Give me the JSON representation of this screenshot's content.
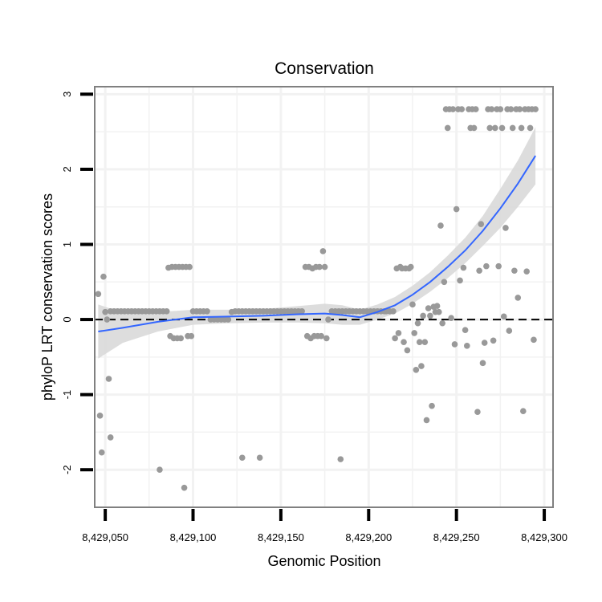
{
  "chart_data": {
    "type": "scatter",
    "title": "Conservation",
    "xlabel": "Genomic Position",
    "ylabel": "phyloP LRT conservation scores",
    "xlim": [
      8429044,
      8429305
    ],
    "ylim": [
      -2.5,
      3.1
    ],
    "x_ticks": [
      8429050,
      8429100,
      8429150,
      8429200,
      8429250,
      8429300
    ],
    "x_tick_labels": [
      "8,429,050",
      "8,429,100",
      "8,429,150",
      "8,429,200",
      "8,429,250",
      "8,429,300"
    ],
    "y_ticks": [
      -2,
      -1,
      0,
      1,
      2,
      3
    ],
    "y_tick_labels": [
      "-2",
      "-1",
      "0",
      "1",
      "2",
      "3"
    ],
    "grid": true,
    "reference_line": {
      "y": 0,
      "style": "dashed"
    },
    "colors": {
      "points": "#999999",
      "smooth_line": "#3366ff",
      "confidence_band": "#d9d9d9",
      "panel_border": "#808080",
      "grid": "#f2f2f2",
      "reference_line": "#000000"
    },
    "series": [
      {
        "name": "scores",
        "points": [
          [
            8429046,
            0.34
          ],
          [
            8429047,
            -1.28
          ],
          [
            8429048,
            -1.77
          ],
          [
            8429049,
            0.57
          ],
          [
            8429050,
            0.1
          ],
          [
            8429051,
            0.0
          ],
          [
            8429052,
            -0.79
          ],
          [
            8429053,
            -1.57
          ],
          [
            8429053,
            0.11
          ],
          [
            8429055,
            0.11
          ],
          [
            8429057,
            0.11
          ],
          [
            8429059,
            0.11
          ],
          [
            8429061,
            0.11
          ],
          [
            8429063,
            0.11
          ],
          [
            8429065,
            0.11
          ],
          [
            8429067,
            0.11
          ],
          [
            8429069,
            0.11
          ],
          [
            8429071,
            0.11
          ],
          [
            8429073,
            0.11
          ],
          [
            8429075,
            0.11
          ],
          [
            8429077,
            0.11
          ],
          [
            8429079,
            0.11
          ],
          [
            8429081,
            -2.0
          ],
          [
            8429081,
            0.11
          ],
          [
            8429083,
            0.11
          ],
          [
            8429085,
            0.11
          ],
          [
            8429086,
            0.69
          ],
          [
            8429087,
            -0.22
          ],
          [
            8429088,
            0.7
          ],
          [
            8429089,
            -0.25
          ],
          [
            8429090,
            0.7
          ],
          [
            8429091,
            -0.25
          ],
          [
            8429092,
            0.7
          ],
          [
            8429093,
            -0.25
          ],
          [
            8429094,
            0.7
          ],
          [
            8429095,
            -2.24
          ],
          [
            8429096,
            0.7
          ],
          [
            8429097,
            -0.22
          ],
          [
            8429098,
            0.7
          ],
          [
            8429099,
            -0.22
          ],
          [
            8429100,
            0.11
          ],
          [
            8429102,
            0.11
          ],
          [
            8429104,
            0.11
          ],
          [
            8429106,
            0.11
          ],
          [
            8429108,
            0.11
          ],
          [
            8429110,
            0.0
          ],
          [
            8429112,
            0.0
          ],
          [
            8429114,
            0.0
          ],
          [
            8429116,
            0.0
          ],
          [
            8429118,
            0.0
          ],
          [
            8429120,
            0.0
          ],
          [
            8429122,
            0.1
          ],
          [
            8429124,
            0.11
          ],
          [
            8429126,
            0.11
          ],
          [
            8429128,
            0.11
          ],
          [
            8429128,
            -1.84
          ],
          [
            8429130,
            0.11
          ],
          [
            8429132,
            0.11
          ],
          [
            8429134,
            0.11
          ],
          [
            8429136,
            0.11
          ],
          [
            8429138,
            0.11
          ],
          [
            8429138,
            -1.84
          ],
          [
            8429140,
            0.11
          ],
          [
            8429142,
            0.11
          ],
          [
            8429144,
            0.11
          ],
          [
            8429146,
            0.11
          ],
          [
            8429148,
            0.11
          ],
          [
            8429150,
            0.11
          ],
          [
            8429152,
            0.11
          ],
          [
            8429154,
            0.11
          ],
          [
            8429156,
            0.11
          ],
          [
            8429158,
            0.11
          ],
          [
            8429160,
            0.11
          ],
          [
            8429162,
            0.11
          ],
          [
            8429164,
            0.7
          ],
          [
            8429165,
            -0.22
          ],
          [
            8429166,
            0.7
          ],
          [
            8429167,
            -0.25
          ],
          [
            8429168,
            0.68
          ],
          [
            8429169,
            -0.22
          ],
          [
            8429170,
            0.7
          ],
          [
            8429171,
            -0.22
          ],
          [
            8429172,
            0.7
          ],
          [
            8429173,
            -0.22
          ],
          [
            8429174,
            0.91
          ],
          [
            8429175,
            0.7
          ],
          [
            8429176,
            -0.25
          ],
          [
            8429177,
            0.0
          ],
          [
            8429179,
            0.11
          ],
          [
            8429181,
            0.11
          ],
          [
            8429183,
            0.11
          ],
          [
            8429184,
            -1.86
          ],
          [
            8429185,
            0.11
          ],
          [
            8429187,
            0.11
          ],
          [
            8429189,
            0.11
          ],
          [
            8429191,
            0.11
          ],
          [
            8429193,
            0.11
          ],
          [
            8429195,
            0.11
          ],
          [
            8429197,
            0.11
          ],
          [
            8429199,
            0.11
          ],
          [
            8429201,
            0.11
          ],
          [
            8429203,
            0.11
          ],
          [
            8429205,
            0.11
          ],
          [
            8429207,
            0.11
          ],
          [
            8429209,
            0.11
          ],
          [
            8429210,
            0.11
          ],
          [
            8429212,
            0.11
          ],
          [
            8429214,
            0.11
          ],
          [
            8429215,
            -0.25
          ],
          [
            8429216,
            0.68
          ],
          [
            8429217,
            -0.18
          ],
          [
            8429218,
            0.7
          ],
          [
            8429219,
            0.68
          ],
          [
            8429220,
            -0.3
          ],
          [
            8429221,
            0.68
          ],
          [
            8429222,
            -0.41
          ],
          [
            8429223,
            0.68
          ],
          [
            8429224,
            0.7
          ],
          [
            8429225,
            0.2
          ],
          [
            8429226,
            -0.18
          ],
          [
            8429227,
            -0.67
          ],
          [
            8429228,
            -0.05
          ],
          [
            8429229,
            -0.3
          ],
          [
            8429230,
            -0.62
          ],
          [
            8429231,
            0.05
          ],
          [
            8429232,
            -0.3
          ],
          [
            8429233,
            -1.34
          ],
          [
            8429234,
            0.15
          ],
          [
            8429235,
            0.05
          ],
          [
            8429236,
            -1.15
          ],
          [
            8429237,
            0.17
          ],
          [
            8429238,
            0.1
          ],
          [
            8429239,
            0.18
          ],
          [
            8429240,
            0.1
          ],
          [
            8429241,
            1.25
          ],
          [
            8429242,
            -0.05
          ],
          [
            8429243,
            0.5
          ],
          [
            8429244,
            2.8
          ],
          [
            8429245,
            2.55
          ],
          [
            8429246,
            2.8
          ],
          [
            8429247,
            0.02
          ],
          [
            8429248,
            2.8
          ],
          [
            8429249,
            -0.33
          ],
          [
            8429250,
            1.47
          ],
          [
            8429251,
            2.8
          ],
          [
            8429252,
            0.52
          ],
          [
            8429253,
            2.8
          ],
          [
            8429254,
            0.69
          ],
          [
            8429255,
            -0.14
          ],
          [
            8429256,
            -0.35
          ],
          [
            8429257,
            2.8
          ],
          [
            8429258,
            2.55
          ],
          [
            8429259,
            2.8
          ],
          [
            8429260,
            2.55
          ],
          [
            8429261,
            2.8
          ],
          [
            8429262,
            -1.23
          ],
          [
            8429263,
            0.65
          ],
          [
            8429264,
            1.27
          ],
          [
            8429265,
            -0.58
          ],
          [
            8429266,
            -0.31
          ],
          [
            8429267,
            0.71
          ],
          [
            8429268,
            2.8
          ],
          [
            8429269,
            2.55
          ],
          [
            8429270,
            2.8
          ],
          [
            8429271,
            -0.28
          ],
          [
            8429272,
            2.55
          ],
          [
            8429273,
            2.8
          ],
          [
            8429274,
            0.71
          ],
          [
            8429275,
            2.8
          ],
          [
            8429276,
            2.55
          ],
          [
            8429277,
            0.04
          ],
          [
            8429278,
            1.22
          ],
          [
            8429279,
            2.8
          ],
          [
            8429280,
            -0.15
          ],
          [
            8429281,
            2.8
          ],
          [
            8429282,
            2.55
          ],
          [
            8429283,
            0.65
          ],
          [
            8429284,
            2.8
          ],
          [
            8429285,
            0.29
          ],
          [
            8429286,
            2.8
          ],
          [
            8429287,
            2.55
          ],
          [
            8429288,
            -1.22
          ],
          [
            8429289,
            2.8
          ],
          [
            8429290,
            0.64
          ],
          [
            8429291,
            2.8
          ],
          [
            8429292,
            2.55
          ],
          [
            8429293,
            2.8
          ],
          [
            8429294,
            -0.27
          ],
          [
            8429295,
            2.8
          ]
        ]
      }
    ],
    "smooth": {
      "x": [
        8429046,
        8429060,
        8429080,
        8429100,
        8429120,
        8429140,
        8429160,
        8429175,
        8429185,
        8429195,
        8429205,
        8429215,
        8429225,
        8429235,
        8429245,
        8429255,
        8429265,
        8429275,
        8429285,
        8429295
      ],
      "y": [
        -0.16,
        -0.11,
        -0.03,
        0.03,
        0.04,
        0.05,
        0.07,
        0.08,
        0.06,
        0.03,
        0.1,
        0.19,
        0.33,
        0.5,
        0.7,
        0.92,
        1.18,
        1.48,
        1.81,
        2.18
      ],
      "lower": [
        -0.52,
        -0.31,
        -0.16,
        -0.07,
        -0.05,
        -0.04,
        -0.04,
        -0.05,
        -0.07,
        -0.07,
        0.0,
        0.08,
        0.21,
        0.37,
        0.55,
        0.75,
        0.98,
        1.22,
        1.5,
        1.8
      ],
      "upper": [
        0.2,
        0.09,
        0.1,
        0.13,
        0.13,
        0.14,
        0.18,
        0.21,
        0.19,
        0.13,
        0.2,
        0.3,
        0.45,
        0.63,
        0.85,
        1.09,
        1.38,
        1.74,
        2.12,
        2.56
      ]
    }
  }
}
